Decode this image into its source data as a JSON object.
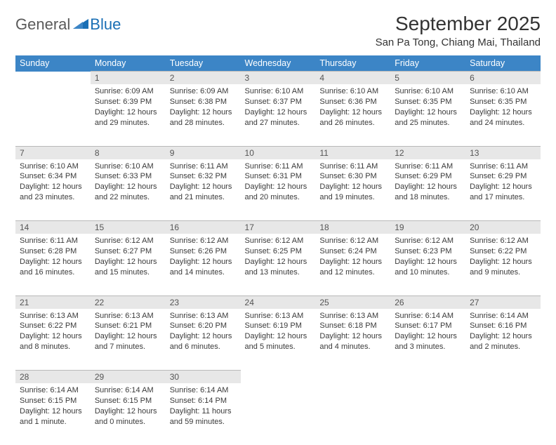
{
  "logo": {
    "text_a": "General",
    "text_b": "Blue"
  },
  "title": "September 2025",
  "location": "San Pa Tong, Chiang Mai, Thailand",
  "colors": {
    "header_bg": "#3c85c6",
    "header_fg": "#ffffff",
    "daynum_bg": "#e7e7e7",
    "daynum_border": "#b9b9b9",
    "text": "#333333",
    "logo_gray": "#5a5a5a",
    "logo_blue": "#1a6fb5"
  },
  "weekdays": [
    "Sunday",
    "Monday",
    "Tuesday",
    "Wednesday",
    "Thursday",
    "Friday",
    "Saturday"
  ],
  "weeks": [
    [
      null,
      {
        "n": "1",
        "sr": "Sunrise: 6:09 AM",
        "ss": "Sunset: 6:39 PM",
        "dl": "Daylight: 12 hours and 29 minutes."
      },
      {
        "n": "2",
        "sr": "Sunrise: 6:09 AM",
        "ss": "Sunset: 6:38 PM",
        "dl": "Daylight: 12 hours and 28 minutes."
      },
      {
        "n": "3",
        "sr": "Sunrise: 6:10 AM",
        "ss": "Sunset: 6:37 PM",
        "dl": "Daylight: 12 hours and 27 minutes."
      },
      {
        "n": "4",
        "sr": "Sunrise: 6:10 AM",
        "ss": "Sunset: 6:36 PM",
        "dl": "Daylight: 12 hours and 26 minutes."
      },
      {
        "n": "5",
        "sr": "Sunrise: 6:10 AM",
        "ss": "Sunset: 6:35 PM",
        "dl": "Daylight: 12 hours and 25 minutes."
      },
      {
        "n": "6",
        "sr": "Sunrise: 6:10 AM",
        "ss": "Sunset: 6:35 PM",
        "dl": "Daylight: 12 hours and 24 minutes."
      }
    ],
    [
      {
        "n": "7",
        "sr": "Sunrise: 6:10 AM",
        "ss": "Sunset: 6:34 PM",
        "dl": "Daylight: 12 hours and 23 minutes."
      },
      {
        "n": "8",
        "sr": "Sunrise: 6:10 AM",
        "ss": "Sunset: 6:33 PM",
        "dl": "Daylight: 12 hours and 22 minutes."
      },
      {
        "n": "9",
        "sr": "Sunrise: 6:11 AM",
        "ss": "Sunset: 6:32 PM",
        "dl": "Daylight: 12 hours and 21 minutes."
      },
      {
        "n": "10",
        "sr": "Sunrise: 6:11 AM",
        "ss": "Sunset: 6:31 PM",
        "dl": "Daylight: 12 hours and 20 minutes."
      },
      {
        "n": "11",
        "sr": "Sunrise: 6:11 AM",
        "ss": "Sunset: 6:30 PM",
        "dl": "Daylight: 12 hours and 19 minutes."
      },
      {
        "n": "12",
        "sr": "Sunrise: 6:11 AM",
        "ss": "Sunset: 6:29 PM",
        "dl": "Daylight: 12 hours and 18 minutes."
      },
      {
        "n": "13",
        "sr": "Sunrise: 6:11 AM",
        "ss": "Sunset: 6:29 PM",
        "dl": "Daylight: 12 hours and 17 minutes."
      }
    ],
    [
      {
        "n": "14",
        "sr": "Sunrise: 6:11 AM",
        "ss": "Sunset: 6:28 PM",
        "dl": "Daylight: 12 hours and 16 minutes."
      },
      {
        "n": "15",
        "sr": "Sunrise: 6:12 AM",
        "ss": "Sunset: 6:27 PM",
        "dl": "Daylight: 12 hours and 15 minutes."
      },
      {
        "n": "16",
        "sr": "Sunrise: 6:12 AM",
        "ss": "Sunset: 6:26 PM",
        "dl": "Daylight: 12 hours and 14 minutes."
      },
      {
        "n": "17",
        "sr": "Sunrise: 6:12 AM",
        "ss": "Sunset: 6:25 PM",
        "dl": "Daylight: 12 hours and 13 minutes."
      },
      {
        "n": "18",
        "sr": "Sunrise: 6:12 AM",
        "ss": "Sunset: 6:24 PM",
        "dl": "Daylight: 12 hours and 12 minutes."
      },
      {
        "n": "19",
        "sr": "Sunrise: 6:12 AM",
        "ss": "Sunset: 6:23 PM",
        "dl": "Daylight: 12 hours and 10 minutes."
      },
      {
        "n": "20",
        "sr": "Sunrise: 6:12 AM",
        "ss": "Sunset: 6:22 PM",
        "dl": "Daylight: 12 hours and 9 minutes."
      }
    ],
    [
      {
        "n": "21",
        "sr": "Sunrise: 6:13 AM",
        "ss": "Sunset: 6:22 PM",
        "dl": "Daylight: 12 hours and 8 minutes."
      },
      {
        "n": "22",
        "sr": "Sunrise: 6:13 AM",
        "ss": "Sunset: 6:21 PM",
        "dl": "Daylight: 12 hours and 7 minutes."
      },
      {
        "n": "23",
        "sr": "Sunrise: 6:13 AM",
        "ss": "Sunset: 6:20 PM",
        "dl": "Daylight: 12 hours and 6 minutes."
      },
      {
        "n": "24",
        "sr": "Sunrise: 6:13 AM",
        "ss": "Sunset: 6:19 PM",
        "dl": "Daylight: 12 hours and 5 minutes."
      },
      {
        "n": "25",
        "sr": "Sunrise: 6:13 AM",
        "ss": "Sunset: 6:18 PM",
        "dl": "Daylight: 12 hours and 4 minutes."
      },
      {
        "n": "26",
        "sr": "Sunrise: 6:14 AM",
        "ss": "Sunset: 6:17 PM",
        "dl": "Daylight: 12 hours and 3 minutes."
      },
      {
        "n": "27",
        "sr": "Sunrise: 6:14 AM",
        "ss": "Sunset: 6:16 PM",
        "dl": "Daylight: 12 hours and 2 minutes."
      }
    ],
    [
      {
        "n": "28",
        "sr": "Sunrise: 6:14 AM",
        "ss": "Sunset: 6:15 PM",
        "dl": "Daylight: 12 hours and 1 minute."
      },
      {
        "n": "29",
        "sr": "Sunrise: 6:14 AM",
        "ss": "Sunset: 6:15 PM",
        "dl": "Daylight: 12 hours and 0 minutes."
      },
      {
        "n": "30",
        "sr": "Sunrise: 6:14 AM",
        "ss": "Sunset: 6:14 PM",
        "dl": "Daylight: 11 hours and 59 minutes."
      },
      null,
      null,
      null,
      null
    ]
  ]
}
